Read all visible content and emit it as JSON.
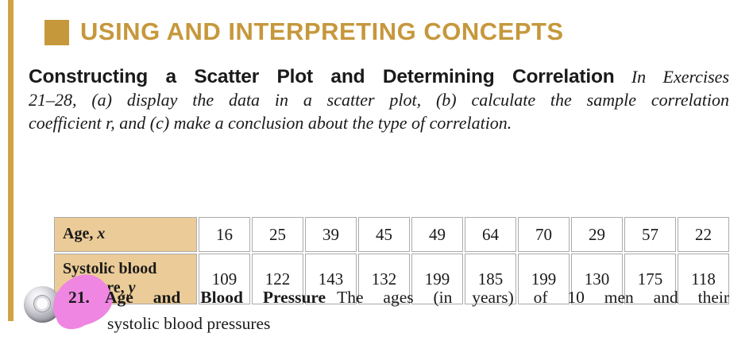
{
  "colors": {
    "gold": "#C6983C",
    "gold_bar": "#D2A344",
    "table_header_bg": "#EBCB97",
    "highlight_pink": "#EE86E2",
    "table_border": "#ABABAB",
    "text": "#1A1A1A"
  },
  "section_header": {
    "title": "USING AND INTERPRETING CONCEPTS"
  },
  "instructions": {
    "heading": "Constructing a Scatter Plot and Determining Correlation",
    "line1_italic": "In Exercises",
    "line2": "21–28, (a) display the data in a scatter plot, (b) calculate the sample correlation",
    "line3": "coefficient r, and (c) make a conclusion about the type of correlation."
  },
  "exercise": {
    "number": "21.",
    "title": "Age and Blood Pressure",
    "body_line1": "The ages (in years) of 10 men and their",
    "body_line2": "systolic blood pressures"
  },
  "table": {
    "rows": [
      {
        "label": "Age,",
        "var": "x",
        "values": [
          "16",
          "25",
          "39",
          "45",
          "49",
          "64",
          "70",
          "29",
          "57",
          "22"
        ]
      },
      {
        "label": "Systolic blood pressure,",
        "var": "y",
        "values": [
          "109",
          "122",
          "143",
          "132",
          "199",
          "185",
          "199",
          "130",
          "175",
          "118"
        ]
      }
    ]
  }
}
